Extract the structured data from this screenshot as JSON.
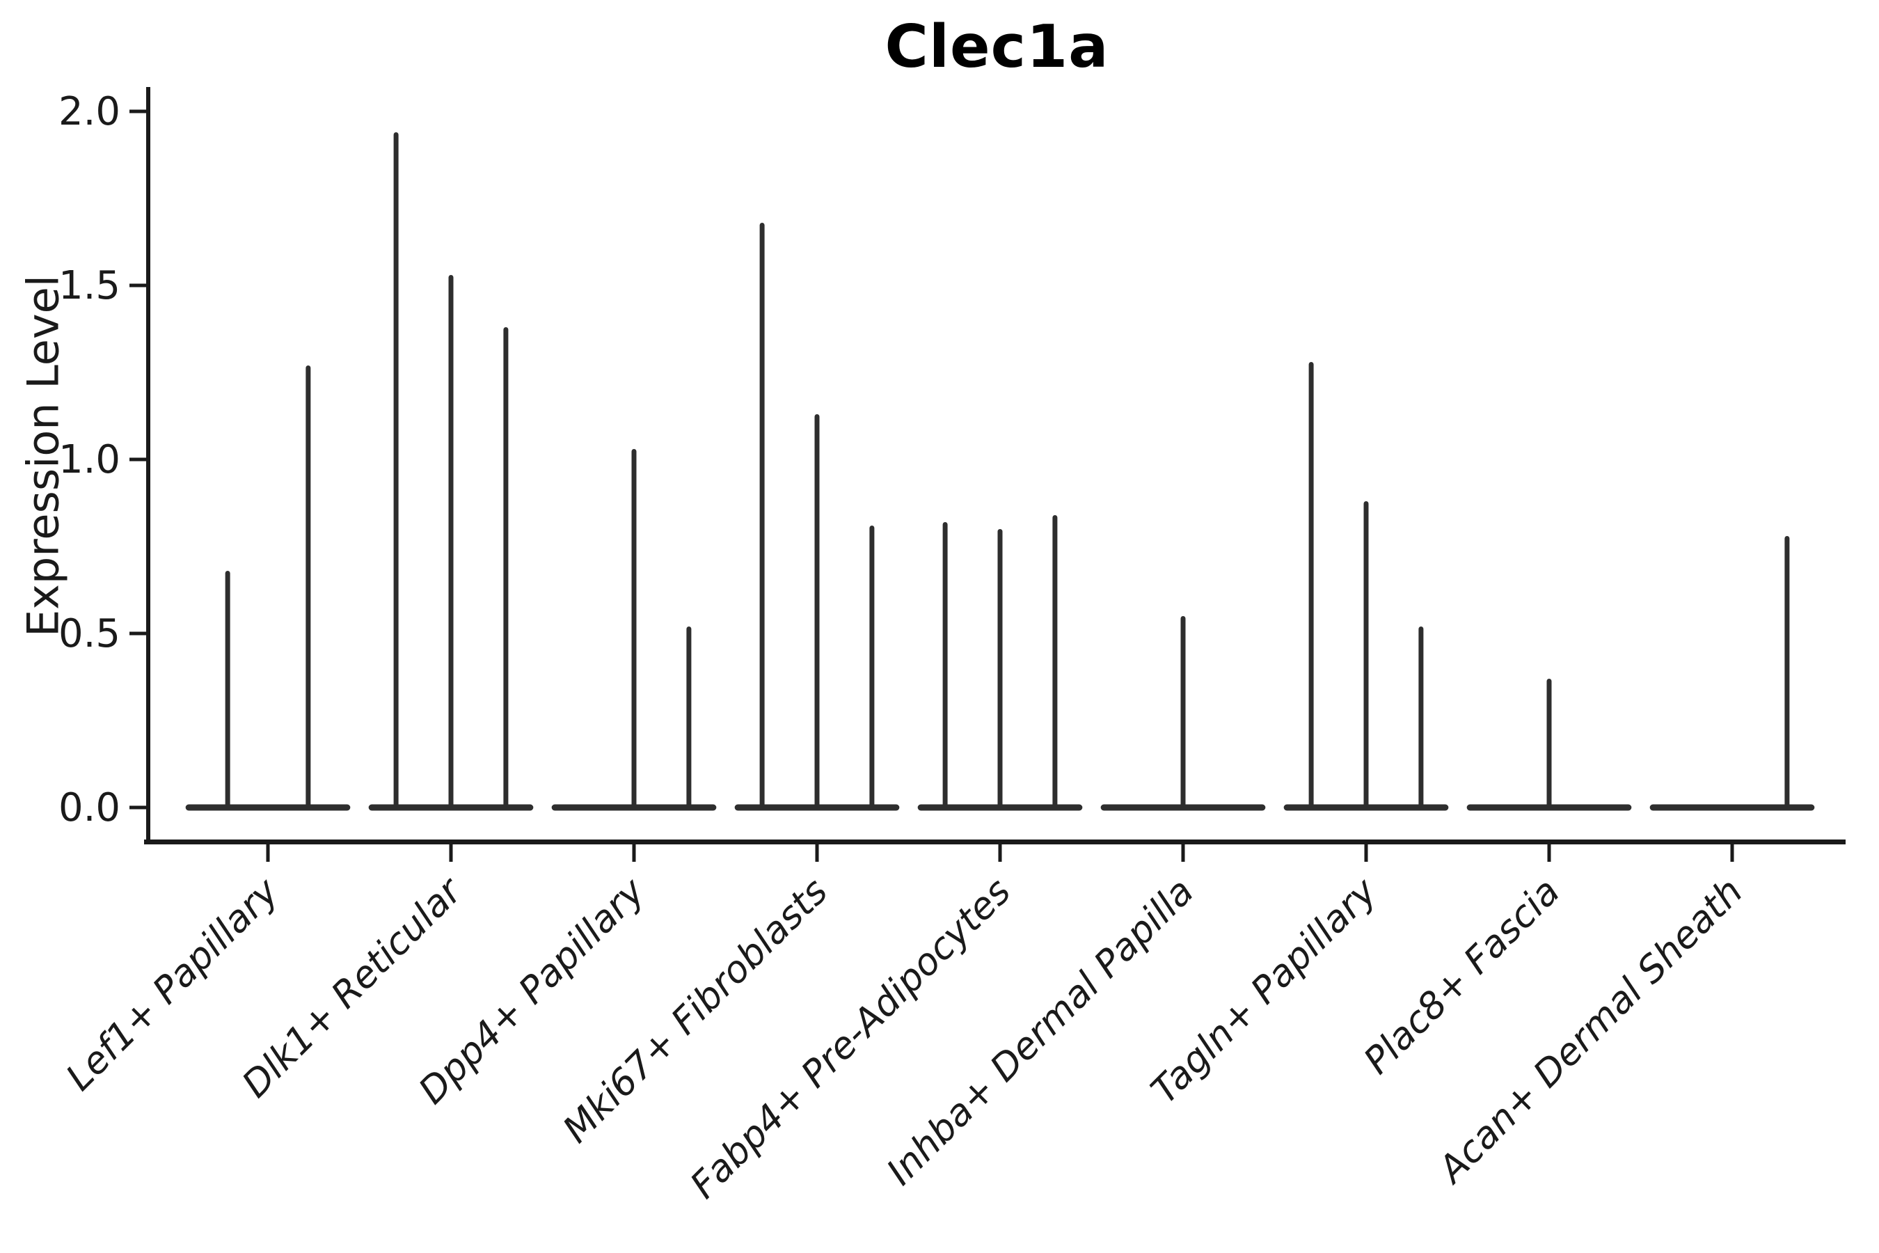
{
  "page": {
    "background_color": "#ffffff"
  },
  "chart_data": {
    "type": "violin",
    "title": "Clec1a",
    "ylabel": "Expression Level",
    "xlabel": "",
    "ylim": [
      0.0,
      2.0
    ],
    "yticks": [
      0.0,
      0.5,
      1.0,
      1.5,
      2.0
    ],
    "ytick_labels": [
      "0.0",
      "0.5",
      "1.0",
      "1.5",
      "2.0"
    ],
    "grid": false,
    "legend_position": "none",
    "violin_color": "#2e2e2e",
    "axis_color": "#1a1a1a",
    "title_color": "#000000",
    "description": "Very thin spike-shaped violins (most mass at 0) grouped per cell-type; flat violin bases merge into a dark bar at y=0 for each category; pos is the sub-violin offset as a fraction of category spacing; max is the spike top in Expression Level units",
    "baseline_halfwidth_frac": 0.45,
    "categories": [
      {
        "label": "Lef1+ Papillary",
        "violins": [
          {
            "pos": -0.22,
            "max": 0.68
          },
          {
            "pos": 0.22,
            "max": 1.27
          }
        ]
      },
      {
        "label": "Dlk1+ Reticular",
        "violins": [
          {
            "pos": -0.3,
            "max": 1.94
          },
          {
            "pos": 0.0,
            "max": 1.53
          },
          {
            "pos": 0.3,
            "max": 1.38
          }
        ]
      },
      {
        "label": "Dpp4+ Papillary",
        "violins": [
          {
            "pos": 0.0,
            "max": 1.03
          },
          {
            "pos": 0.3,
            "max": 0.52
          }
        ]
      },
      {
        "label": "Mki67+ Fibroblasts",
        "violins": [
          {
            "pos": -0.3,
            "max": 1.68
          },
          {
            "pos": 0.0,
            "max": 1.13
          },
          {
            "pos": 0.3,
            "max": 0.81
          }
        ]
      },
      {
        "label": "Fabp4+ Pre-Adipocytes",
        "violins": [
          {
            "pos": -0.3,
            "max": 0.82
          },
          {
            "pos": 0.0,
            "max": 0.8
          },
          {
            "pos": 0.3,
            "max": 0.84
          }
        ]
      },
      {
        "label": "Inhba+ Dermal Papilla",
        "violins": [
          {
            "pos": 0.0,
            "max": 0.55
          }
        ]
      },
      {
        "label": "Tagln+ Papillary",
        "violins": [
          {
            "pos": -0.3,
            "max": 1.28
          },
          {
            "pos": 0.0,
            "max": 0.88
          },
          {
            "pos": 0.3,
            "max": 0.52
          }
        ]
      },
      {
        "label": "Plac8+ Fascia",
        "violins": [
          {
            "pos": 0.0,
            "max": 0.37
          }
        ]
      },
      {
        "label": "Acan+ Dermal Sheath",
        "violins": [
          {
            "pos": 0.3,
            "max": 0.78
          }
        ]
      }
    ]
  }
}
